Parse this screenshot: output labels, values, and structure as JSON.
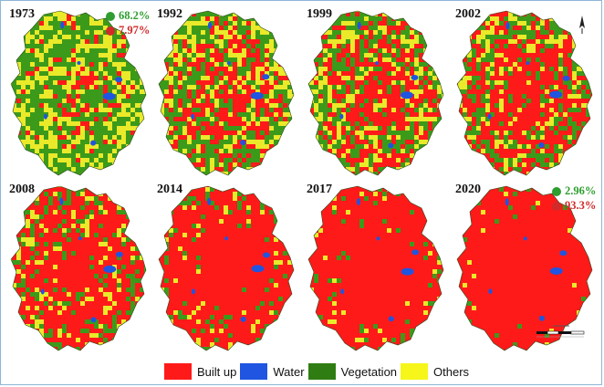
{
  "panels": [
    {
      "year": "1973",
      "veg": 0.68,
      "stats": [
        {
          "value": "68.2%",
          "color": "#2e9e2e"
        },
        {
          "value": "7.97%",
          "color": "#d12a2a"
        }
      ]
    },
    {
      "year": "1992",
      "veg": 0.45,
      "stats": []
    },
    {
      "year": "1999",
      "veg": 0.4,
      "stats": []
    },
    {
      "year": "2002",
      "veg": 0.33,
      "stats": []
    },
    {
      "year": "2008",
      "veg": 0.22,
      "stats": []
    },
    {
      "year": "2014",
      "veg": 0.12,
      "stats": []
    },
    {
      "year": "2017",
      "veg": 0.08,
      "stats": []
    },
    {
      "year": "2020",
      "veg": 0.03,
      "stats": [
        {
          "value": "2.96%",
          "color": "#2e9e2e"
        },
        {
          "value": "93.3%",
          "color": "#d12a2a"
        }
      ]
    }
  ],
  "legend": [
    {
      "label": "Built up",
      "color": "#ff1a1a"
    },
    {
      "label": "Water",
      "color": "#1f55e0"
    },
    {
      "label": "Vegetation",
      "color": "#2f7d12"
    },
    {
      "label": "Others",
      "color": "#f6f61a"
    }
  ],
  "colors": {
    "builtup": "#ff1a1a",
    "water": "#1f55e0",
    "vegetation": "#3c9a1a",
    "others": "#eaea2a"
  }
}
